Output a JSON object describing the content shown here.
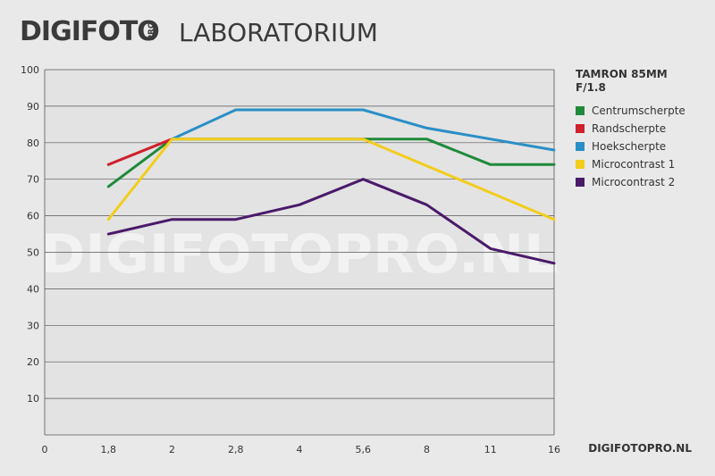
{
  "header": {
    "brand": "DIGIFOTO",
    "brand_sub": "PRO",
    "section": "LABORATORIUM"
  },
  "footer": {
    "site": "DIGIFOTOPRO.NL"
  },
  "watermark": "DIGIFOTOPRO.NL",
  "chart_data": {
    "type": "line",
    "title": "TAMRON 85MM F/1.8",
    "categories": [
      "0",
      "1,8",
      "2",
      "2,8",
      "4",
      "5,6",
      "8",
      "11",
      "16"
    ],
    "ylim": [
      0,
      100
    ],
    "yticks": [
      10,
      20,
      30,
      40,
      50,
      60,
      70,
      80,
      90,
      100
    ],
    "grid": true,
    "legend": "right",
    "series": [
      {
        "name": "Centrumscherpte",
        "color": "#1f8a3a",
        "values": [
          null,
          68,
          81,
          81,
          81,
          81,
          81,
          74,
          74
        ]
      },
      {
        "name": "Randscherpte",
        "color": "#d0202c",
        "values": [
          null,
          74,
          81,
          null,
          null,
          null,
          null,
          null,
          null
        ]
      },
      {
        "name": "Hoekscherpte",
        "color": "#2a8fc6",
        "values": [
          null,
          null,
          81,
          89,
          89,
          89,
          84,
          81,
          78
        ]
      },
      {
        "name": "Microcontrast 1",
        "color": "#f2cd1b",
        "values": [
          null,
          59,
          81,
          81,
          81,
          81,
          null,
          null,
          59
        ]
      },
      {
        "name": "Microcontrast 2",
        "color": "#4a1a6a",
        "values": [
          null,
          55,
          59,
          59,
          63,
          70,
          63,
          51,
          47
        ]
      }
    ]
  }
}
